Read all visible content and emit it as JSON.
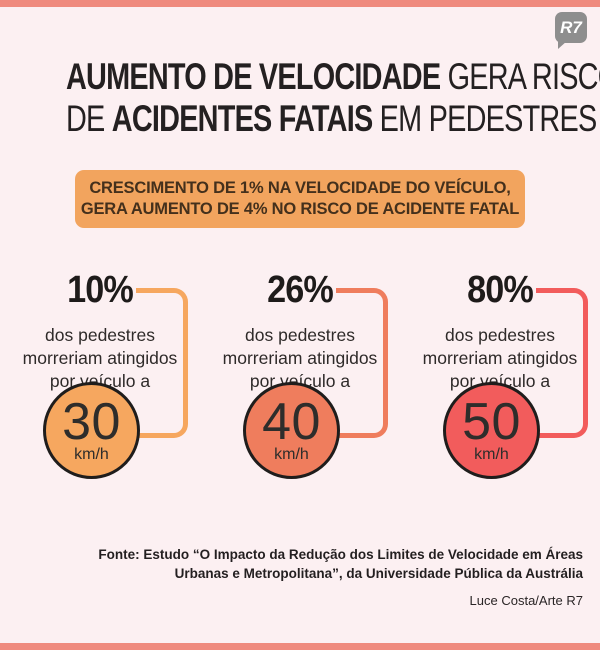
{
  "page": {
    "background_color": "#FCF0F2",
    "accent_bar_color": "#EF8A7E"
  },
  "logo": {
    "text": "R7",
    "background_color": "#8E8E8E",
    "text_color": "#FFFFFF"
  },
  "title": {
    "line1_bold": "AUMENTO DE VELOCIDADE",
    "line1_regular": " GERA RISCOS",
    "line2_prefix": "DE ",
    "line2_bold": "ACIDENTES FATAIS",
    "line2_suffix": " EM PEDESTRES",
    "color": "#242021"
  },
  "highlight_box": {
    "line1": "CRESCIMENTO DE 1% NA VELOCIDADE DO VEÍCULO,",
    "line2": "GERA AUMENTO DE 4% NO RISCO DE ACIDENTE FATAL",
    "background_color": "#F2A45E",
    "text_color": "#44301C"
  },
  "columns": [
    {
      "percent": "10%",
      "desc_line1": "dos pedestres",
      "desc_line2": "morreriam atingidos",
      "desc_line3": "por veículo a",
      "speed": "30",
      "speed_unit": "km/h",
      "accent_color": "#F6A75F"
    },
    {
      "percent": "26%",
      "desc_line1": "dos pedestres",
      "desc_line2": "morreriam atingidos",
      "desc_line3": "por veículo a",
      "speed": "40",
      "speed_unit": "km/h",
      "accent_color": "#EF7D5D"
    },
    {
      "percent": "80%",
      "desc_line1": "dos pedestres",
      "desc_line2": "morreriam atingidos",
      "desc_line3": "por veículo a",
      "speed": "50",
      "speed_unit": "km/h",
      "accent_color": "#F25C5C"
    }
  ],
  "footer": {
    "source_line1": "Fonte: Estudo “O Impacto da Redução dos Limites de Velocidade em Áreas",
    "source_line2": "Urbanas e Metropolitana”, da Universidade Pública da Austrália",
    "credit": "Luce Costa/Arte R7"
  },
  "chart_data": {
    "type": "table",
    "title": "AUMENTO DE VELOCIDADE GERA RISCOS DE ACIDENTES FATAIS EM PEDESTRES",
    "subtitle": "CRESCIMENTO DE 1% NA VELOCIDADE DO VEÍCULO, GERA AUMENTO DE 4% NO RISCO DE ACIDENTE FATAL",
    "categories": [
      "30 km/h",
      "40 km/h",
      "50 km/h"
    ],
    "values": [
      10,
      26,
      80
    ],
    "unit": "%",
    "value_label": "dos pedestres morreriam atingidos por veículo a",
    "legend_colors": [
      "#F6A75F",
      "#EF7D5D",
      "#F25C5C"
    ],
    "source": "Estudo “O Impacto da Redução dos Limites de Velocidade em Áreas Urbanas e Metropolitana”, da Universidade Pública da Austrália",
    "credit": "Luce Costa/Arte R7"
  }
}
